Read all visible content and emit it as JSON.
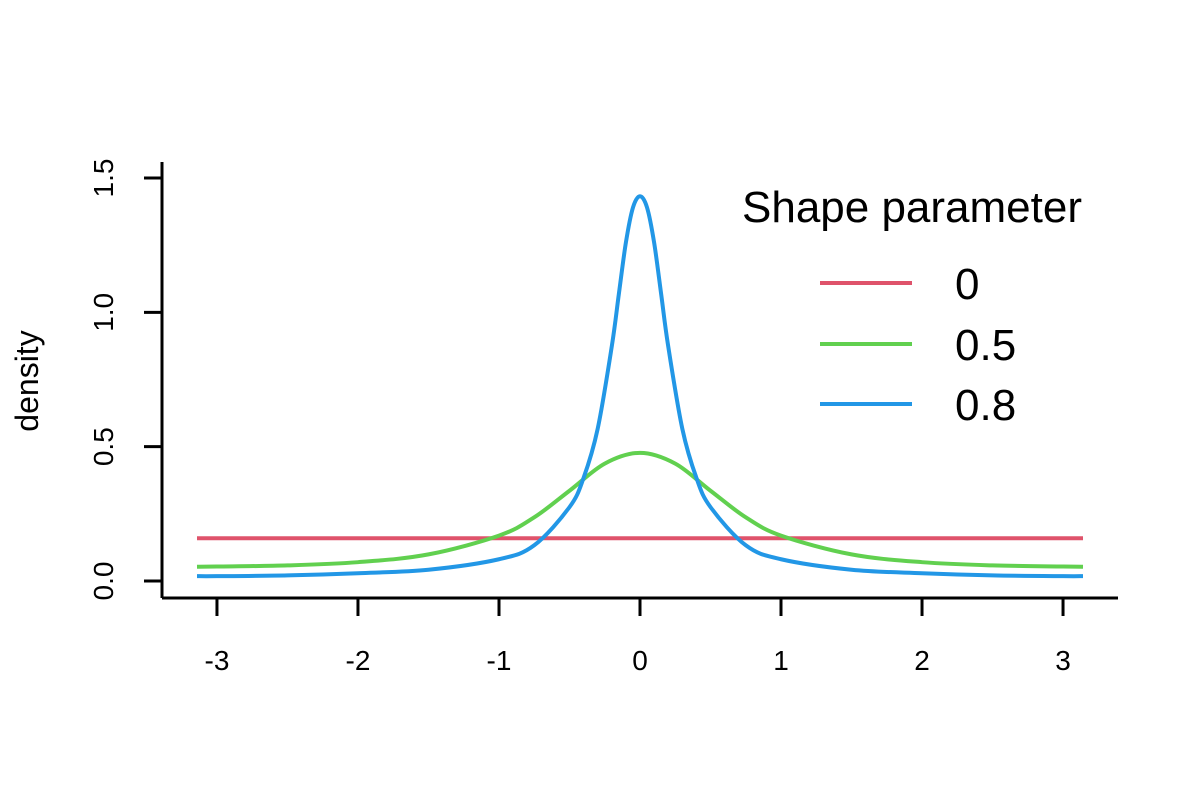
{
  "chart_data": {
    "type": "line",
    "title": "",
    "xlabel": "",
    "ylabel": "density",
    "xlim": [
      -3.14159,
      3.14159
    ],
    "ylim": [
      0,
      1.5
    ],
    "x_ticks": [
      -3,
      -2,
      -1,
      0,
      1,
      2,
      3
    ],
    "x_tick_labels": [
      "-3",
      "-2",
      "-1",
      "0",
      "1",
      "2",
      "3"
    ],
    "y_ticks": [
      0,
      0.5,
      1,
      1.5
    ],
    "y_tick_labels": [
      "0.0",
      "0.5",
      "1.0",
      "1.5"
    ],
    "grid": false,
    "legend": {
      "title": "Shape parameter",
      "position": "top-right"
    },
    "series": [
      {
        "name": "0",
        "color": "#DF536B",
        "x": [
          -3.14159,
          -3,
          -2.5,
          -2,
          -1.5,
          -1,
          -0.5,
          0,
          0.5,
          1,
          1.5,
          2,
          2.5,
          3,
          3.14159
        ],
        "y": [
          0.159,
          0.159,
          0.159,
          0.159,
          0.159,
          0.159,
          0.159,
          0.159,
          0.159,
          0.159,
          0.159,
          0.159,
          0.159,
          0.159,
          0.159
        ]
      },
      {
        "name": "0.5",
        "color": "#61D04F",
        "x": [
          -3.14159,
          -3,
          -2.5,
          -2,
          -1.5,
          -1,
          -0.75,
          -0.5,
          -0.25,
          0,
          0.25,
          0.5,
          0.75,
          1,
          1.5,
          2,
          2.5,
          3,
          3.14159
        ],
        "y": [
          0.053,
          0.054,
          0.058,
          0.07,
          0.099,
          0.169,
          0.237,
          0.336,
          0.437,
          0.477,
          0.437,
          0.336,
          0.237,
          0.169,
          0.099,
          0.07,
          0.058,
          0.054,
          0.053
        ]
      },
      {
        "name": "0.8",
        "color": "#2297E6",
        "x": [
          -3.14159,
          -3,
          -2.5,
          -2,
          -1.5,
          -1,
          -0.75,
          -0.5,
          -0.4,
          -0.3,
          -0.2,
          -0.15,
          -0.1,
          -0.05,
          0,
          0.05,
          0.1,
          0.15,
          0.2,
          0.3,
          0.4,
          0.5,
          0.75,
          1,
          1.5,
          2,
          2.5,
          3,
          3.14159
        ],
        "y": [
          0.018,
          0.018,
          0.021,
          0.029,
          0.042,
          0.081,
          0.133,
          0.275,
          0.384,
          0.567,
          0.874,
          1.068,
          1.26,
          1.39,
          1.432,
          1.39,
          1.26,
          1.068,
          0.874,
          0.567,
          0.384,
          0.275,
          0.133,
          0.081,
          0.042,
          0.029,
          0.021,
          0.018,
          0.018
        ]
      }
    ]
  }
}
